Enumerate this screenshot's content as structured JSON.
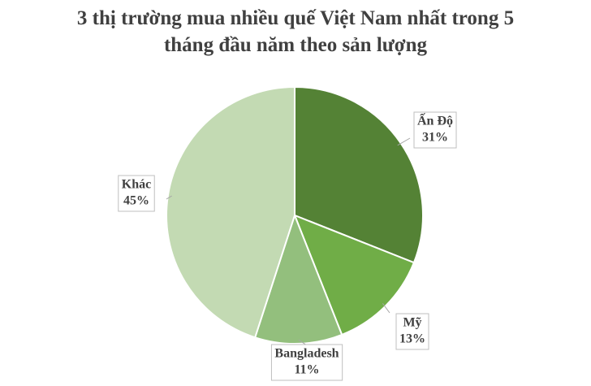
{
  "chart_data": {
    "type": "pie",
    "title": "3 thị trường mua nhiều quế Việt Nam nhất trong 5 tháng đầu năm theo sản lượng",
    "categories": [
      "Ấn Độ",
      "Mỹ",
      "Bangladesh",
      "Khác"
    ],
    "values": [
      31,
      13,
      11,
      45
    ],
    "value_labels": [
      "31%",
      "13%",
      "11%",
      "45%"
    ],
    "colors": [
      "#548235",
      "#70ad47",
      "#93bf7d",
      "#c3dab3"
    ]
  }
}
